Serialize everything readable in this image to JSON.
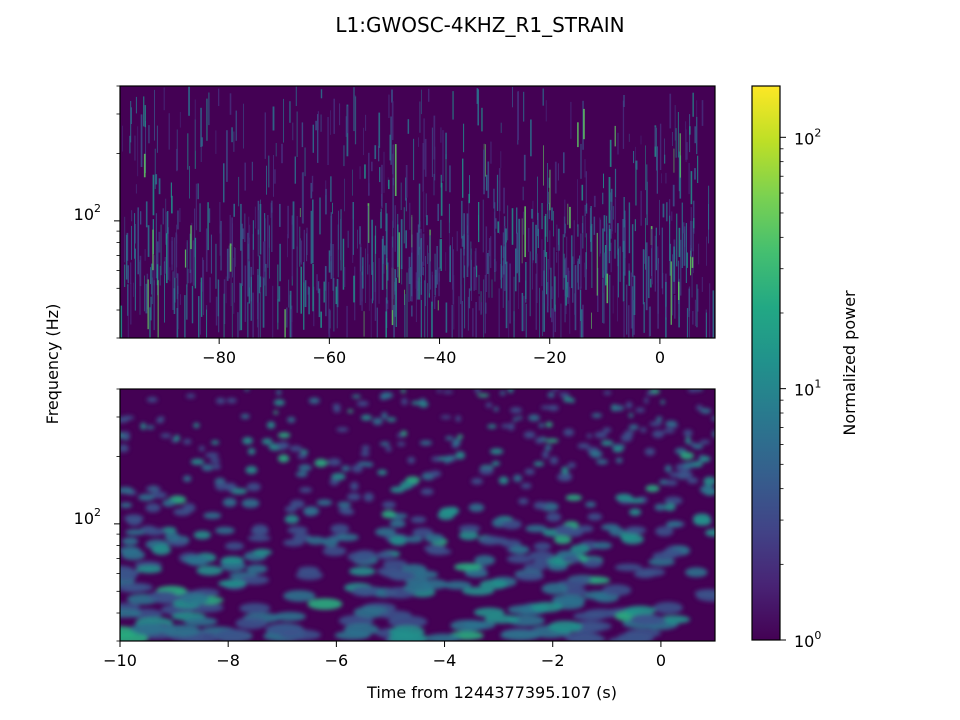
{
  "chart_data": {
    "type": "heatmap",
    "title": "L1:GWOSC-4KHZ_R1_STRAIN",
    "ylabel": "Frequency (Hz)",
    "xlabel": "Time from 1244377395.107 (s)",
    "colormap": "viridis",
    "yscale": "log",
    "panels": [
      {
        "id": "top",
        "xlim": [
          -98,
          10
        ],
        "ylim": [
          30,
          400
        ],
        "xticks": [
          -80,
          -60,
          -40,
          -20,
          0
        ],
        "xtick_labels": [
          "−80",
          "−60",
          "−40",
          "−20",
          "0"
        ],
        "ytick_label": "10",
        "ytick_exp": "2",
        "pattern": "vertical-streaks"
      },
      {
        "id": "bottom",
        "xlim": [
          -10,
          1
        ],
        "ylim": [
          30,
          400
        ],
        "xticks": [
          -10,
          -8,
          -6,
          -4,
          -2,
          0
        ],
        "xtick_labels": [
          "−10",
          "−8",
          "−6",
          "−4",
          "−2",
          "0"
        ],
        "ytick_label": "10",
        "ytick_exp": "2",
        "pattern": "blobs"
      }
    ],
    "colorbar": {
      "label": "Normalized power",
      "scale": "log",
      "range": [
        1,
        160
      ],
      "ticks": [
        {
          "base": "10",
          "exp": "0",
          "value": 1
        },
        {
          "base": "10",
          "exp": "1",
          "value": 10
        },
        {
          "base": "10",
          "exp": "2",
          "value": 100
        }
      ]
    }
  }
}
